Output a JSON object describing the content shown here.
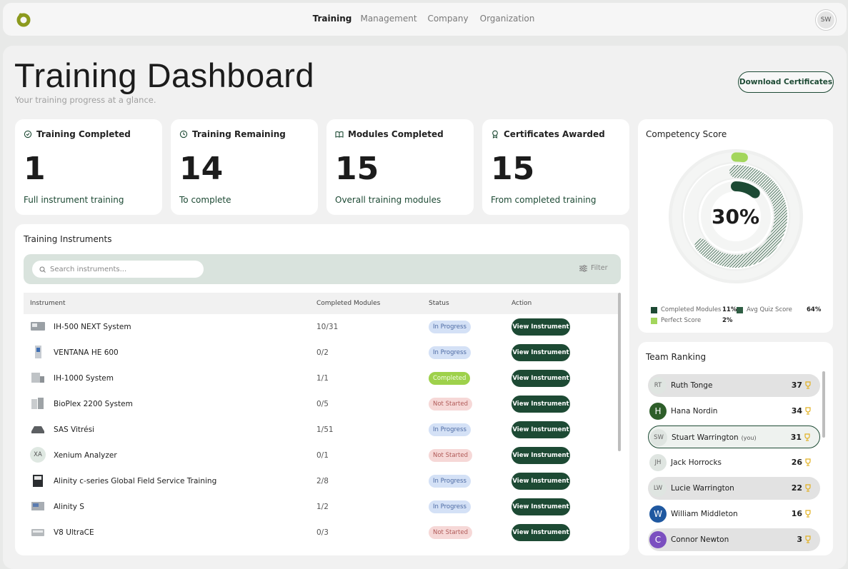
{
  "nav": {
    "items": [
      "Training",
      "Management",
      "Company",
      "Organization"
    ],
    "avatar": "SW"
  },
  "header": {
    "title": "Training Dashboard",
    "subtitle": "Your training progress at a glance.",
    "button": "Download Certificates"
  },
  "stats": [
    {
      "label": "Training Completed",
      "value": 1,
      "note": "Full instrument training"
    },
    {
      "label": "Training Remaining",
      "value": 14,
      "note": "To complete"
    },
    {
      "label": "Modules Completed",
      "value": 15,
      "note": "Overall training modules"
    },
    {
      "label": "Certificates Awarded",
      "value": 15,
      "note": "From completed training"
    }
  ],
  "instruments": {
    "title": "Training Instruments",
    "search_placeholder": "Search instruments...",
    "filter": "Filter",
    "columns": [
      "Instrument",
      "Completed Modules",
      "Status",
      "Action"
    ],
    "rows": [
      {
        "name": "IH-500 NEXT System",
        "modules": "10/31",
        "status": "In Progress",
        "action": "View Instrument"
      },
      {
        "name": "VENTANA HE 600",
        "modules": "0/2",
        "status": "In Progress",
        "action": "View Instrument"
      },
      {
        "name": "IH-1000 System",
        "modules": "1/1",
        "status": "Completed",
        "action": "View Instrument"
      },
      {
        "name": "BioPlex 2200 System",
        "modules": "0/5",
        "status": "Not Started",
        "action": "View Instrument"
      },
      {
        "name": "SAS Vitrési",
        "modules": "1/51",
        "status": "In Progress",
        "action": "View Instrument"
      },
      {
        "icon": "XA",
        "name": "Xenium Analyzer",
        "modules": "0/1",
        "status": "Not Started",
        "action": "View Instrument"
      },
      {
        "name": "Alinity c-series Global Field Service Training",
        "modules": "2/8",
        "status": "In Progress",
        "action": "View Instrument"
      },
      {
        "name": "Alinity S",
        "modules": "1/2",
        "status": "In Progress",
        "action": "View Instrument"
      },
      {
        "name": "V8 UltraCE",
        "modules": "0/3",
        "status": "Not Started",
        "action": "View Instrument"
      }
    ]
  },
  "competency": {
    "title": "Competency Score",
    "score": 30,
    "score_label": "30%",
    "legend": [
      {
        "name": "Completed Modules",
        "value": 11,
        "value_label": "11%",
        "color": "#1d4a34"
      },
      {
        "name": "Avg Quiz Score",
        "value": 64,
        "value_label": "64%",
        "color": "#2f5e44"
      },
      {
        "name": "Perfect Score",
        "value": 2,
        "value_label": "2%",
        "color": "#a3d65c"
      }
    ]
  },
  "ranking": {
    "title": "Team Ranking",
    "members": [
      {
        "initials": "RT",
        "name": "Ruth Tonge",
        "score": 37
      },
      {
        "initials": "H",
        "name": "Hana Nordin",
        "score": 34,
        "avatar_color": "#2e5e2a"
      },
      {
        "initials": "SW",
        "name": "Stuart Warrington",
        "note": "(you)",
        "score": 31
      },
      {
        "initials": "JH",
        "name": "Jack Horrocks",
        "score": 26
      },
      {
        "initials": "LW",
        "name": "Lucie Warrington",
        "score": 22
      },
      {
        "initials": "W",
        "name": "William Middleton",
        "score": 16,
        "avatar_color": "#1f58a0"
      },
      {
        "initials": "C",
        "name": "Connor Newton",
        "score": 3,
        "avatar_color": "#7b4fc0"
      }
    ]
  }
}
